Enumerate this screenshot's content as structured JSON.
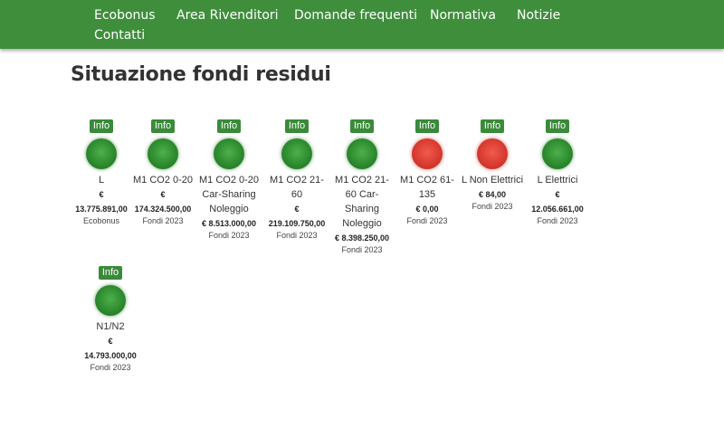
{
  "nav": [
    "Ecobonus",
    "Area Rivenditori",
    "Domande frequenti",
    "Normativa",
    "Notizie",
    "Contatti"
  ],
  "page_title": "Situazione fondi residui",
  "cards": [
    {
      "info": "Info",
      "status": "green",
      "label": "L",
      "euro": "€",
      "amount": "13.775.891,00",
      "fund": "Ecobonus"
    },
    {
      "info": "Info",
      "status": "green",
      "label": "M1 CO2 0-20",
      "euro": "€",
      "amount": "174.324.500,00",
      "fund": "Fondi 2023"
    },
    {
      "info": "Info",
      "status": "green",
      "label": "M1 CO2 0-20 Car-Sharing Noleggio",
      "euro": "€",
      "amount": "8.513.000,00",
      "fund": "Fondi 2023"
    },
    {
      "info": "Info",
      "status": "green",
      "label": "M1 CO2 21-60",
      "euro": "€",
      "amount": "219.109.750,00",
      "fund": "Fondi 2023"
    },
    {
      "info": "Info",
      "status": "green",
      "label": "M1 CO2 21-60 Car-Sharing Noleggio",
      "euro": "€",
      "amount": "8.398.250,00",
      "fund": "Fondi 2023"
    },
    {
      "info": "Info",
      "status": "red",
      "label": "M1 CO2 61-135",
      "euro": "€",
      "amount": "0,00",
      "fund": "Fondi 2023"
    },
    {
      "info": "Info",
      "status": "red",
      "label": "L Non Elettrici",
      "euro": "€",
      "amount": "84,00",
      "fund": "Fondi 2023"
    },
    {
      "info": "Info",
      "status": "green",
      "label": "L Elettrici",
      "euro": "€",
      "amount": "12.056.661,00",
      "fund": "Fondi 2023"
    },
    {
      "info": "Info",
      "status": "green",
      "label": "N1/N2",
      "euro": "€",
      "amount": "14.793.000,00",
      "fund": "Fondi 2023"
    }
  ]
}
